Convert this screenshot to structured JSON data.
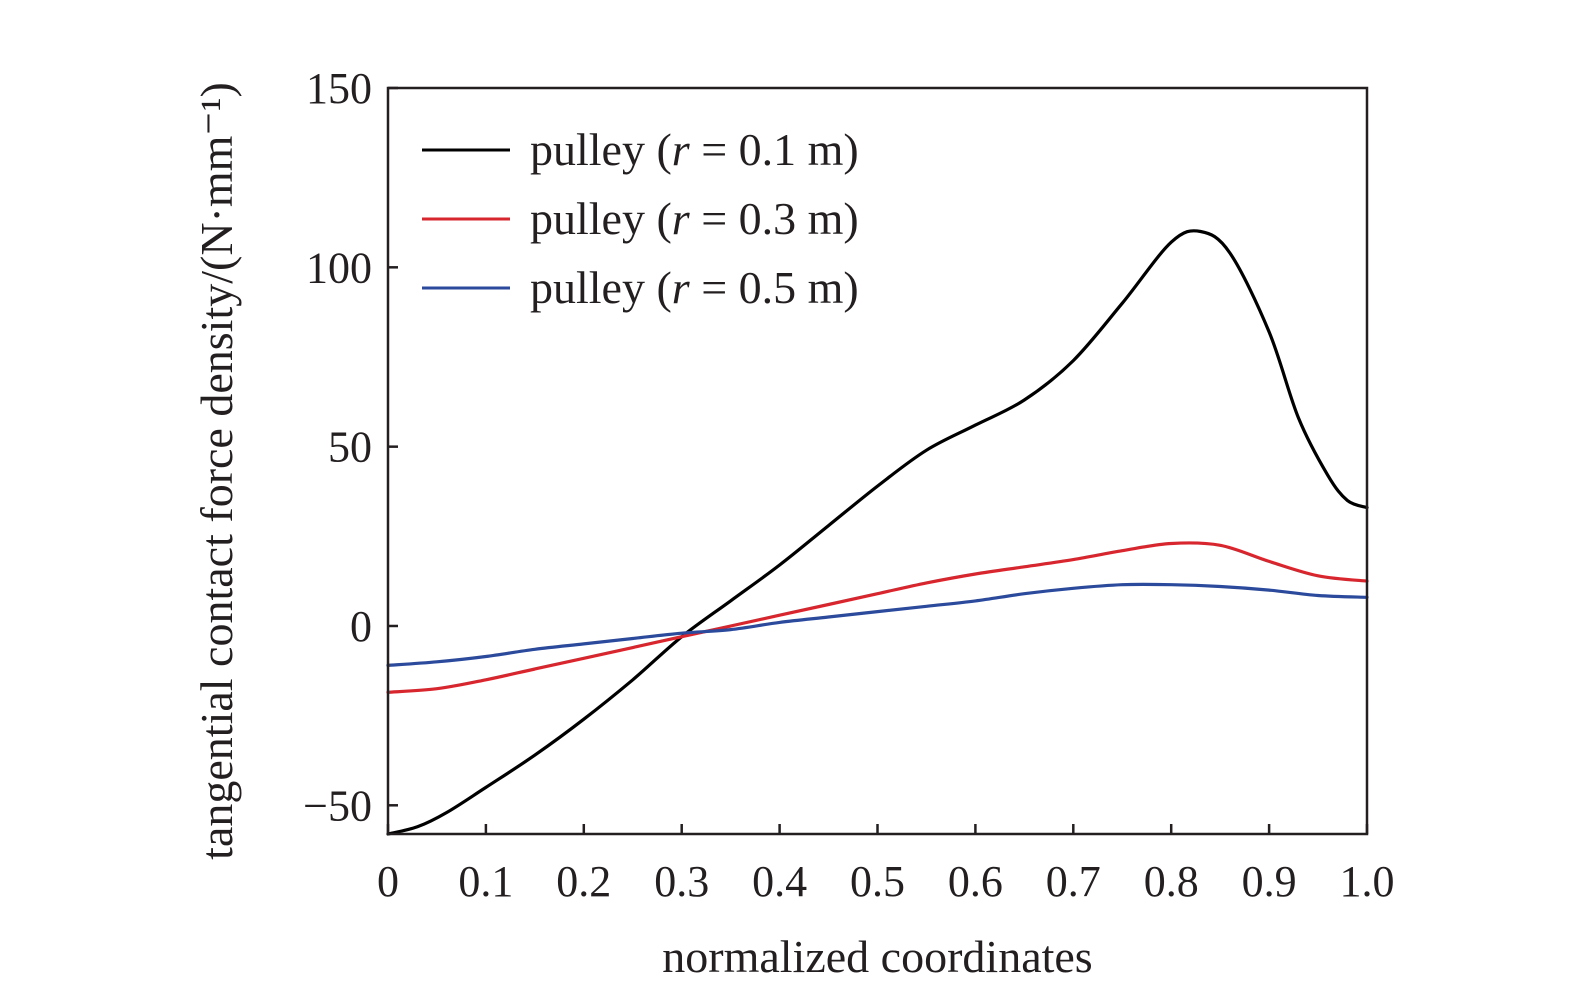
{
  "chart_data": {
    "type": "line",
    "xlabel": "normalized coordinates",
    "ylabel": "tangential contact force density/(N·mm⁻¹)",
    "xlim": [
      0,
      1.0
    ],
    "ylim": [
      -58,
      150
    ],
    "x_ticks": [
      "0",
      "0.1",
      "0.2",
      "0.3",
      "0.4",
      "0.5",
      "0.6",
      "0.7",
      "0.8",
      "0.9",
      "1.0"
    ],
    "y_ticks": [
      "−50",
      "0",
      "50",
      "100",
      "150"
    ],
    "grid": false,
    "legend_position": "top-left",
    "series": [
      {
        "name": "pulley (r = 0.1 m)",
        "name_prefix": "pulley (",
        "name_var": "r",
        "name_suffix": " = 0.1 m)",
        "color": "#000000",
        "x": [
          0,
          0.03,
          0.06,
          0.1,
          0.15,
          0.2,
          0.25,
          0.3,
          0.35,
          0.4,
          0.45,
          0.5,
          0.55,
          0.6,
          0.65,
          0.7,
          0.75,
          0.8,
          0.83,
          0.86,
          0.9,
          0.93,
          0.96,
          0.98,
          1.0
        ],
        "y": [
          -58,
          -56,
          -52,
          -45,
          -36,
          -26,
          -15,
          -3,
          7,
          17,
          28,
          39,
          49,
          56,
          63,
          74,
          90,
          107,
          110,
          104,
          82,
          58,
          42,
          35,
          33
        ]
      },
      {
        "name": "pulley (r = 0.3 m)",
        "name_prefix": "pulley (",
        "name_var": "r",
        "name_suffix": " = 0.3 m)",
        "color": "#d7262e",
        "x": [
          0,
          0.05,
          0.1,
          0.15,
          0.2,
          0.25,
          0.3,
          0.35,
          0.4,
          0.45,
          0.5,
          0.55,
          0.6,
          0.65,
          0.7,
          0.75,
          0.8,
          0.85,
          0.9,
          0.95,
          1.0
        ],
        "y": [
          -18.5,
          -17.5,
          -15,
          -12,
          -9,
          -6,
          -3,
          0,
          3,
          6,
          9,
          12,
          14.5,
          16.5,
          18.5,
          21,
          23,
          22.5,
          18,
          14,
          12.5
        ]
      },
      {
        "name": "pulley (r = 0.5 m)",
        "name_prefix": "pulley (",
        "name_var": "r",
        "name_suffix": " = 0.5 m)",
        "color": "#2b4a9c",
        "x": [
          0,
          0.05,
          0.1,
          0.15,
          0.2,
          0.25,
          0.3,
          0.35,
          0.4,
          0.45,
          0.5,
          0.55,
          0.6,
          0.65,
          0.7,
          0.75,
          0.8,
          0.85,
          0.9,
          0.95,
          1.0
        ],
        "y": [
          -11,
          -10,
          -8.5,
          -6.5,
          -5,
          -3.5,
          -2,
          -1,
          1,
          2.5,
          4,
          5.5,
          7,
          9,
          10.5,
          11.5,
          11.5,
          11,
          10,
          8.5,
          8
        ]
      }
    ]
  }
}
